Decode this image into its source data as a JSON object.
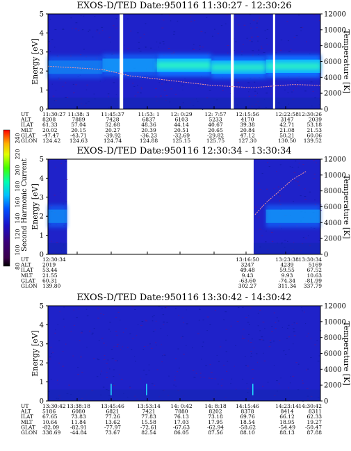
{
  "colorbar": {
    "label": "Second Harmonic Current",
    "ticks": [
      "240",
      "220",
      "200",
      "180",
      "160",
      "140",
      "120",
      "100",
      "80"
    ]
  },
  "info_labels": [
    "UT",
    "ALT",
    "ILAT",
    "MLT",
    "GLAT",
    "GLON"
  ],
  "chart_data": [
    {
      "type": "heatmap",
      "title": "EXOS-D/TED   Date:950116   11:30:27 - 12:30:26",
      "ylabel": "Energy [eV]",
      "ylabel_right": "Temperature [K]",
      "ylim": [
        0,
        5
      ],
      "ylim_right": [
        0,
        12000
      ],
      "yticks": [
        "0",
        "1",
        "2",
        "3",
        "4",
        "5"
      ],
      "yticks_right": [
        "0",
        "2000",
        "4000",
        "6000",
        "8000",
        "10000",
        "12000"
      ],
      "gaps": [
        [
          0.263,
          0.276
        ],
        [
          0.671,
          0.682
        ],
        [
          0.826,
          0.834
        ]
      ],
      "band": {
        "center": [
          2.2,
          2.3,
          2.3,
          2.2,
          2.25
        ],
        "strength": [
          0.35,
          0.5,
          0.85,
          0.75,
          0.8
        ]
      },
      "temperature_trace": [
        [
          0.0,
          5400
        ],
        [
          0.1,
          5200
        ],
        [
          0.2,
          5000
        ],
        [
          0.3,
          4200
        ],
        [
          0.45,
          3600
        ],
        [
          0.6,
          3000
        ],
        [
          0.75,
          2700
        ],
        [
          0.9,
          3100
        ],
        [
          1.0,
          3000
        ]
      ],
      "info_columns": [
        [
          "11:30:27",
          "8208",
          "61.33",
          "20.02",
          "-47.47",
          "124.42"
        ],
        [
          "11:38: 3",
          "7889",
          "57.04",
          "20.15",
          "-43.71",
          "124.63"
        ],
        [
          "11:45:37",
          "7428",
          "52.68",
          "20.27",
          "-39.92",
          "124.74"
        ],
        [
          "11:53: 1",
          "6837",
          "48.36",
          "20.39",
          "-36.23",
          "124.88"
        ],
        [
          "12: 0:29",
          "6103",
          "44.14",
          "20.51",
          "-32.69",
          "125.15"
        ],
        [
          "12: 7:57",
          "5233",
          "40.67",
          "20.65",
          "-29.82",
          "125.75"
        ],
        [
          "12:15:56",
          "4170",
          "39.38",
          "20.84",
          "47.12",
          "127.30"
        ],
        [
          "12:22:58",
          "3147",
          "42.71",
          "21.08",
          "50.21",
          "130.50"
        ],
        [
          "12:30:26",
          "2039",
          "53.18",
          "21.53",
          "60.06",
          "139.52"
        ]
      ]
    },
    {
      "type": "heatmap",
      "title": "EXOS-D/TED   Date:950116   12:30:34 - 13:30:34",
      "ylabel": "Energy [eV]",
      "ylabel_right": "Temperature [K]",
      "ylim": [
        0,
        5
      ],
      "ylim_right": [
        0,
        12000
      ],
      "yticks": [
        "0",
        "1",
        "2",
        "3",
        "4",
        "5"
      ],
      "yticks_right": [
        "0",
        "2000",
        "4000",
        "6000",
        "8000",
        "10000",
        "12000"
      ],
      "data_segments": [
        [
          0.0,
          0.07
        ],
        [
          0.755,
          1.0
        ]
      ],
      "band": {
        "center": [
          2.0,
          2.0,
          2.0,
          2.0,
          2.0
        ],
        "strength": [
          0.4,
          0.0,
          0.0,
          0.0,
          0.45
        ]
      },
      "temperature_trace": [
        [
          0.76,
          5000
        ],
        [
          0.8,
          6500
        ],
        [
          0.85,
          8000
        ],
        [
          0.9,
          9500
        ],
        [
          0.95,
          10500
        ]
      ],
      "info_columns": [
        [
          "12:30:34",
          "2019",
          "53.44",
          "21.55",
          "60.31",
          "139.80"
        ],
        [
          "",
          "",
          "",
          "",
          "",
          ""
        ],
        [
          "",
          "",
          "",
          "",
          "",
          ""
        ],
        [
          "",
          "",
          "",
          "",
          "",
          ""
        ],
        [
          "",
          "",
          "",
          "",
          "",
          ""
        ],
        [
          "",
          "",
          "",
          "",
          "",
          ""
        ],
        [
          "13:16:50",
          "3247",
          "49.48",
          "9.43",
          "-63.60",
          "302.27"
        ],
        [
          "13:23:38",
          "4239",
          "59.55",
          "9.93",
          "-74.34",
          "311.34"
        ],
        [
          "13:30:34",
          "5169",
          "67.52",
          "10.63",
          "-81.99",
          "337.79"
        ]
      ]
    },
    {
      "type": "heatmap",
      "title": "EXOS-D/TED   Date:950116   13:30:42 - 14:30:42",
      "ylabel": "Energy [eV]",
      "ylabel_right": "Temperature [K]",
      "ylim": [
        0,
        5
      ],
      "ylim_right": [
        0,
        12000
      ],
      "yticks": [
        "0",
        "1",
        "2",
        "3",
        "4",
        "5"
      ],
      "yticks_right": [
        "0",
        "2000",
        "4000",
        "6000",
        "8000",
        "10000",
        "12000"
      ],
      "band": {
        "center": [
          2.0,
          2.0,
          2.0,
          2.0,
          2.0
        ],
        "strength": [
          0.0,
          0.0,
          0.0,
          0.0,
          0.0
        ]
      },
      "spikes": [
        0.23,
        0.36,
        0.75
      ],
      "info_columns": [
        [
          "13:30:42",
          "5186",
          "67.65",
          "10.64",
          "-82.09",
          "338.69"
        ],
        [
          "13:38:18",
          "6080",
          "73.83",
          "11.84",
          "-82.91",
          "-44.84"
        ],
        [
          "13:45:46",
          "6821",
          "77.26",
          "13.62",
          "-77.97",
          "73.67"
        ],
        [
          "13:53:14",
          "7421",
          "77.83",
          "15.58",
          "-72.61",
          "82.54"
        ],
        [
          "14: 0:42",
          "7880",
          "76.13",
          "17.03",
          "-67.63",
          "86.05"
        ],
        [
          "14: 8:18",
          "8202",
          "73.18",
          "17.95",
          "-62.94",
          "87.56"
        ],
        [
          "14:15:46",
          "8378",
          "69.76",
          "18.54",
          "-58.62",
          "88.10"
        ],
        [
          "14:23:14",
          "8414",
          "66.12",
          "18.95",
          "-54.49",
          "88.13"
        ],
        [
          "14:30:42",
          "8311",
          "62.33",
          "19.27",
          "-50.47",
          "87.88"
        ]
      ]
    }
  ]
}
